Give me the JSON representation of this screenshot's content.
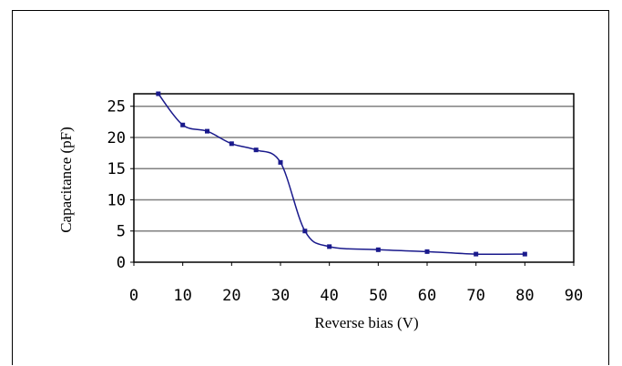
{
  "chart_data": {
    "type": "line",
    "title": "",
    "xlabel": "Reverse bias (V)",
    "ylabel": "Capacitance (pF)",
    "xlim": [
      0,
      90
    ],
    "ylim": [
      0,
      27
    ],
    "x_ticks": [
      "0",
      "10",
      "20",
      "30",
      "40",
      "50",
      "60",
      "70",
      "80",
      "90"
    ],
    "y_ticks": [
      "0",
      "5",
      "10",
      "15",
      "20",
      "25"
    ],
    "y_tick_values": [
      0,
      5,
      10,
      15,
      20,
      25
    ],
    "x_tick_values": [
      0,
      10,
      20,
      30,
      40,
      50,
      60,
      70,
      80,
      90
    ],
    "grid": true,
    "legend": "none",
    "series": [
      {
        "x": [
          5,
          10,
          15,
          20,
          25,
          30,
          35,
          40,
          50,
          60,
          70,
          80
        ],
        "y": [
          27,
          22,
          21,
          19,
          18,
          16,
          5,
          2.5,
          2,
          1.7,
          1.3,
          1.3
        ]
      }
    ],
    "colors": {
      "line": "#1a1a8c",
      "grid": "#808080",
      "plot_bg": "#ffffff"
    }
  }
}
